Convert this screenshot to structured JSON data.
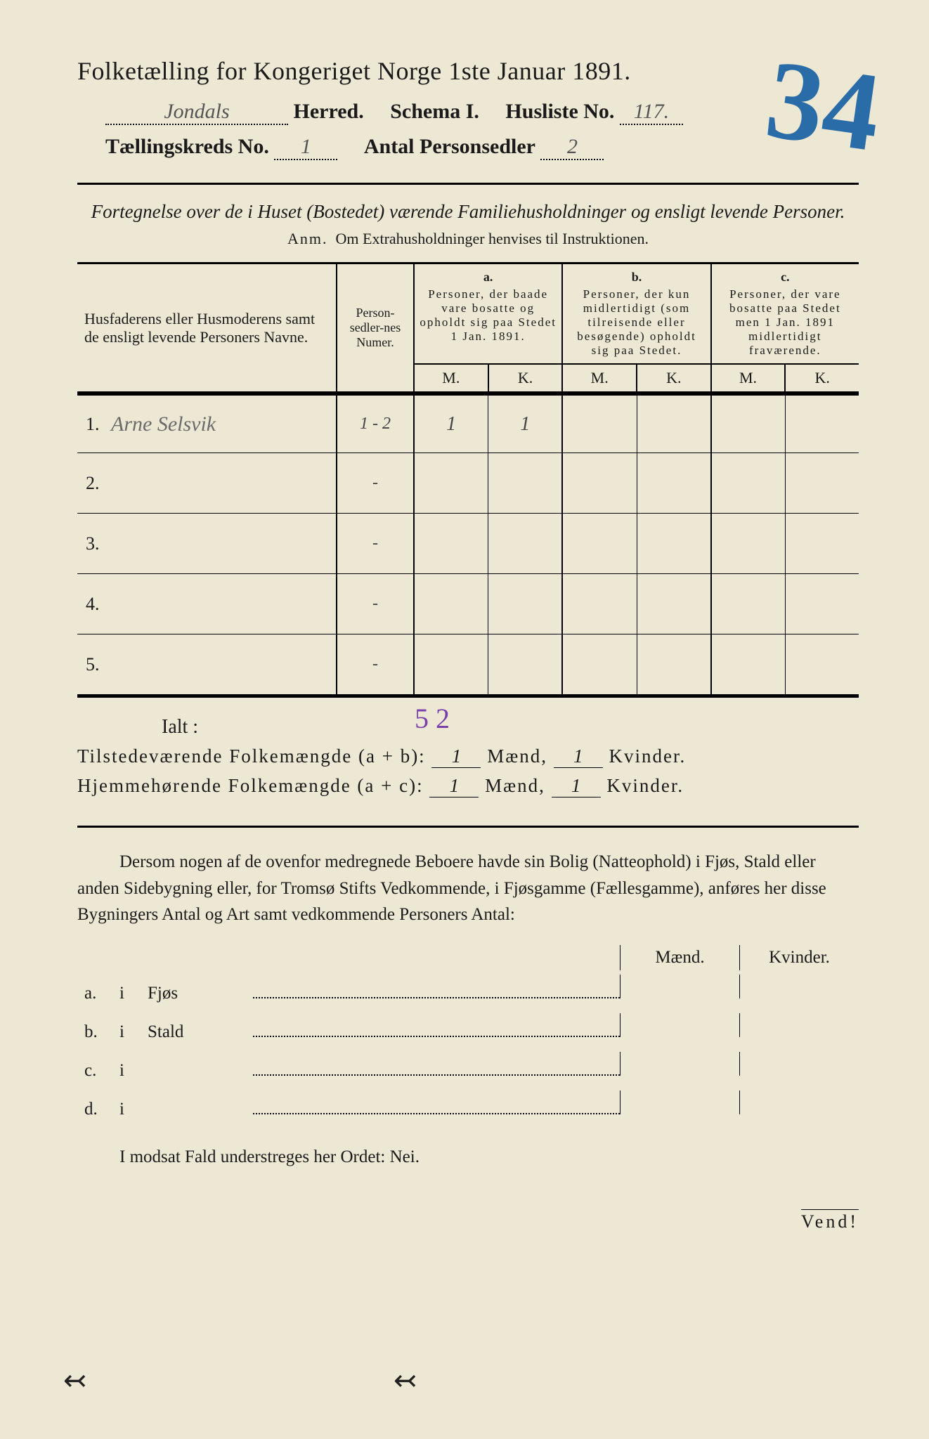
{
  "header": {
    "title": "Folketælling for Kongeriget Norge 1ste Januar 1891.",
    "herred_value": "Jondals",
    "herred_label": "Herred.",
    "schema_label": "Schema I.",
    "husliste_label": "Husliste No.",
    "husliste_value": "117.",
    "kreds_label": "Tællingskreds No.",
    "kreds_value": "1",
    "antal_label": "Antal Personsedler",
    "antal_value": "2",
    "big_number": "34"
  },
  "subtitle": "Fortegnelse over de i Huset (Bostedet) værende Familiehusholdninger og ensligt levende Personer.",
  "anm_label": "Anm.",
  "anm_text": "Om Extrahusholdninger henvises til Instruktionen.",
  "table": {
    "head_name": "Husfaderens eller Husmoderens samt de ensligt levende Personers Navne.",
    "head_num": "Person-sedler-nes Numer.",
    "col_a_letter": "a.",
    "col_a_text": "Personer, der baade vare bosatte og opholdt sig paa Stedet 1 Jan. 1891.",
    "col_b_letter": "b.",
    "col_b_text": "Personer, der kun midlertidigt (som tilreisende eller besøgende) opholdt sig paa Stedet.",
    "col_c_letter": "c.",
    "col_c_text": "Personer, der vare bosatte paa Stedet men 1 Jan. 1891 midlertidigt fraværende.",
    "m": "M.",
    "k": "K.",
    "rows": [
      {
        "n": "1.",
        "name": "Arne Selsvik",
        "num": "1 - 2",
        "a_m": "1",
        "a_k": "1",
        "b_m": "",
        "b_k": "",
        "c_m": "",
        "c_k": ""
      },
      {
        "n": "2.",
        "name": "",
        "num": "-",
        "a_m": "",
        "a_k": "",
        "b_m": "",
        "b_k": "",
        "c_m": "",
        "c_k": ""
      },
      {
        "n": "3.",
        "name": "",
        "num": "-",
        "a_m": "",
        "a_k": "",
        "b_m": "",
        "b_k": "",
        "c_m": "",
        "c_k": ""
      },
      {
        "n": "4.",
        "name": "",
        "num": "-",
        "a_m": "",
        "a_k": "",
        "b_m": "",
        "b_k": "",
        "c_m": "",
        "c_k": ""
      },
      {
        "n": "5.",
        "name": "",
        "num": "-",
        "a_m": "",
        "a_k": "",
        "b_m": "",
        "b_k": "",
        "c_m": "",
        "c_k": ""
      }
    ]
  },
  "ialt": "Ialt :",
  "purple": "5    2",
  "tilstede_label": "Tilstedeværende Folkemængde (a + b):",
  "hjemme_label": "Hjemmehørende Folkemængde (a + c):",
  "maend": "Mænd,",
  "kvinder": "Kvinder.",
  "tilstede_m": "1",
  "tilstede_k": "1",
  "hjemme_m": "1",
  "hjemme_k": "1",
  "para": "Dersom nogen af de ovenfor medregnede Beboere havde sin Bolig (Natteophold) i Fjøs, Stald eller anden Sidebygning eller, for Tromsø Stifts Vedkommende, i Fjøsgamme (Fællesgamme), anføres her disse Bygningers Antal og Art samt vedkommende Personers Antal:",
  "maend_h": "Mænd.",
  "kvinder_h": "Kvinder.",
  "abcd": [
    {
      "l": "a.",
      "i": "i",
      "t": "Fjøs"
    },
    {
      "l": "b.",
      "i": "i",
      "t": "Stald"
    },
    {
      "l": "c.",
      "i": "i",
      "t": ""
    },
    {
      "l": "d.",
      "i": "i",
      "t": ""
    }
  ],
  "nei": "I modsat Fald understreges her Ordet: Nei.",
  "vend": "Vend!",
  "colors": {
    "paper": "#ede8d4",
    "ink": "#1a1a1a",
    "pencil": "#6b6b6b",
    "blue": "#2a6ca8",
    "purple": "#7a3fa8"
  }
}
